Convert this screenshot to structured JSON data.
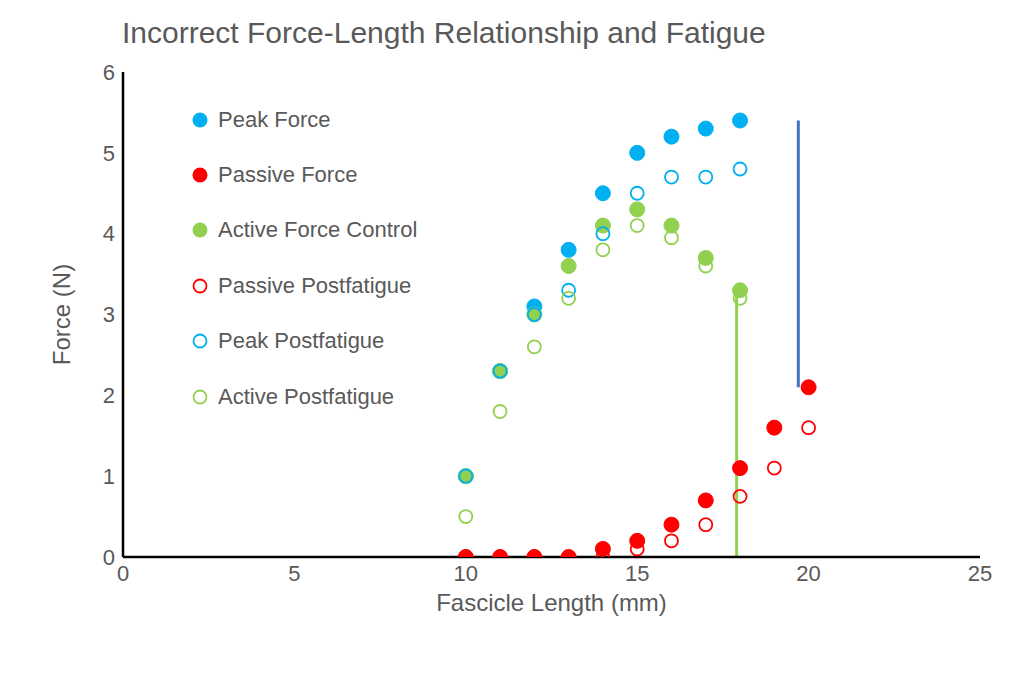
{
  "chart_data": {
    "type": "scatter",
    "title": "Incorrect Force-Length Relationship and Fatigue",
    "x_label": "Fascicle Length (mm)",
    "y_label": "Force (N)",
    "x": [
      10,
      11,
      12,
      13,
      14,
      15,
      16,
      17,
      18,
      19,
      20
    ],
    "series": [
      {
        "name": "Peak Force",
        "color": "#00b0f0",
        "marker": "filled",
        "values": [
          1.0,
          2.3,
          3.1,
          3.8,
          4.5,
          5.0,
          5.2,
          5.3,
          5.4,
          null,
          null
        ]
      },
      {
        "name": "Passive Force",
        "color": "#ff0000",
        "marker": "filled",
        "values": [
          0,
          0,
          0,
          0,
          0.1,
          0.2,
          0.4,
          0.7,
          1.1,
          1.6,
          2.1
        ]
      },
      {
        "name": "Active Force Control",
        "color": "#92d050",
        "marker": "filled",
        "values": [
          1.0,
          2.3,
          3.0,
          3.6,
          4.1,
          4.3,
          4.1,
          3.7,
          3.3,
          null,
          null
        ]
      },
      {
        "name": "Passive Postfatigue",
        "color": "#ff0000",
        "marker": "open",
        "values": [
          0,
          0,
          0,
          0,
          0,
          0.1,
          0.2,
          0.4,
          0.75,
          1.1,
          1.6
        ]
      },
      {
        "name": "Peak Postfatigue",
        "color": "#00b0f0",
        "marker": "open",
        "values": [
          1.0,
          2.3,
          3.0,
          3.3,
          4.0,
          4.5,
          4.7,
          4.7,
          4.8,
          null,
          null
        ]
      },
      {
        "name": "Active Postfatigue",
        "color": "#92d050",
        "marker": "open",
        "values": [
          0.5,
          1.8,
          2.6,
          3.2,
          3.8,
          4.1,
          3.95,
          3.6,
          3.2,
          null,
          null
        ]
      }
    ],
    "vertical_lines": [
      {
        "x": 19.7,
        "ymin": 2.1,
        "ymax": 5.4,
        "color": "#4472c4"
      },
      {
        "x": 17.9,
        "ymin": 0,
        "ymax": 3.3,
        "color": "#92d050"
      }
    ],
    "xlim": [
      0,
      25
    ],
    "xticks": [
      0,
      5,
      10,
      15,
      20,
      25
    ],
    "ylim": [
      0,
      6
    ],
    "yticks": [
      0,
      1,
      2,
      3,
      4,
      5,
      6
    ],
    "grid": false,
    "legend": "upper left"
  }
}
